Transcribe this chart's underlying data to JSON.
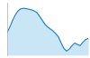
{
  "x": [
    0,
    1,
    2,
    3,
    4,
    5,
    6,
    7,
    8,
    9,
    10,
    11,
    12,
    13,
    14,
    15,
    16,
    17,
    18,
    19,
    20,
    21,
    22,
    23,
    24,
    25,
    26,
    27,
    28,
    29,
    30
  ],
  "y": [
    3100,
    3500,
    4000,
    4400,
    4700,
    4850,
    4900,
    4870,
    4830,
    4780,
    4700,
    4580,
    4300,
    4000,
    3700,
    3500,
    3350,
    3200,
    3000,
    2750,
    2300,
    1900,
    1700,
    1850,
    2100,
    2300,
    2200,
    2100,
    2350,
    2550,
    2650
  ],
  "line_color": "#1a7abf",
  "fill_color": "#c8e6f5",
  "background_color": "#ffffff",
  "ylim_min": 1400,
  "ylim_max": 5300,
  "spine_color": "#aaaaaa",
  "line_width": 0.8,
  "fill_baseline": 1400
}
